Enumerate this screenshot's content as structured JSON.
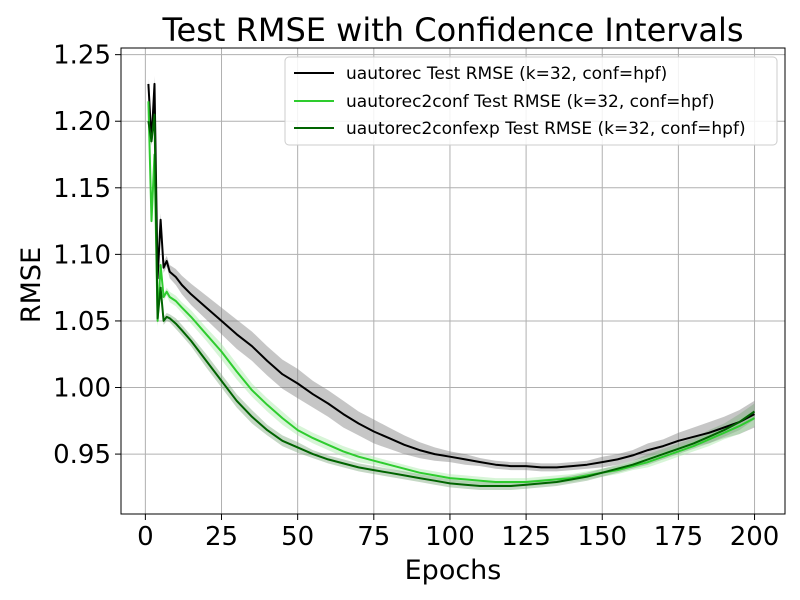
{
  "chart_data": {
    "type": "line",
    "title": "Test RMSE with Confidence Intervals",
    "xlabel": "Epochs",
    "ylabel": "RMSE",
    "xlim": [
      -8,
      210
    ],
    "ylim": [
      0.905,
      1.255
    ],
    "x_ticks": [
      0,
      25,
      50,
      75,
      100,
      125,
      150,
      175,
      200
    ],
    "y_ticks": [
      0.95,
      1.0,
      1.05,
      1.1,
      1.15,
      1.2,
      1.25
    ],
    "y_tick_labels": [
      "0.95",
      "1.00",
      "1.05",
      "1.10",
      "1.15",
      "1.20",
      "1.25"
    ],
    "grid": true,
    "legend_position": "top-right",
    "series": [
      {
        "name": "uautorec Test RMSE (k=32, conf=hpf)",
        "color": "#000000",
        "band_color": "#808080",
        "x": [
          1,
          2,
          3,
          4,
          5,
          6,
          7,
          8,
          10,
          12,
          15,
          20,
          25,
          30,
          35,
          40,
          45,
          50,
          55,
          60,
          65,
          70,
          75,
          80,
          85,
          90,
          95,
          100,
          105,
          110,
          115,
          120,
          125,
          130,
          135,
          140,
          145,
          150,
          155,
          160,
          165,
          170,
          175,
          180,
          185,
          190,
          195,
          200
        ],
        "y": [
          1.228,
          1.185,
          1.228,
          1.082,
          1.126,
          1.09,
          1.095,
          1.087,
          1.083,
          1.077,
          1.07,
          1.06,
          1.05,
          1.04,
          1.031,
          1.02,
          1.01,
          1.003,
          0.995,
          0.988,
          0.98,
          0.973,
          0.967,
          0.962,
          0.957,
          0.953,
          0.95,
          0.948,
          0.946,
          0.944,
          0.942,
          0.941,
          0.941,
          0.94,
          0.94,
          0.941,
          0.942,
          0.944,
          0.946,
          0.949,
          0.953,
          0.956,
          0.96,
          0.963,
          0.966,
          0.97,
          0.974,
          0.98
        ],
        "band": [
          0.004,
          0.004,
          0.006,
          0.006,
          0.005,
          0.004,
          0.004,
          0.005,
          0.006,
          0.007,
          0.008,
          0.009,
          0.01,
          0.011,
          0.011,
          0.011,
          0.011,
          0.011,
          0.01,
          0.01,
          0.01,
          0.009,
          0.009,
          0.008,
          0.007,
          0.006,
          0.005,
          0.004,
          0.004,
          0.003,
          0.003,
          0.003,
          0.003,
          0.003,
          0.003,
          0.003,
          0.003,
          0.004,
          0.004,
          0.004,
          0.005,
          0.005,
          0.006,
          0.007,
          0.008,
          0.008,
          0.009,
          0.01
        ]
      },
      {
        "name": "uautorec2conf Test RMSE (k=32, conf=hpf)",
        "color": "#2ecc2e",
        "band_color": "#a6e9a6",
        "x": [
          1,
          2,
          3,
          4,
          5,
          6,
          7,
          8,
          10,
          12,
          15,
          20,
          25,
          30,
          35,
          40,
          45,
          50,
          55,
          60,
          65,
          70,
          75,
          80,
          85,
          90,
          95,
          100,
          105,
          110,
          115,
          120,
          125,
          130,
          135,
          140,
          145,
          150,
          155,
          160,
          165,
          170,
          175,
          180,
          185,
          190,
          195,
          200
        ],
        "y": [
          1.215,
          1.125,
          1.175,
          1.05,
          1.092,
          1.068,
          1.072,
          1.068,
          1.065,
          1.06,
          1.053,
          1.04,
          1.027,
          1.012,
          0.998,
          0.987,
          0.977,
          0.968,
          0.962,
          0.957,
          0.952,
          0.948,
          0.945,
          0.942,
          0.939,
          0.936,
          0.934,
          0.932,
          0.931,
          0.93,
          0.929,
          0.929,
          0.929,
          0.93,
          0.931,
          0.932,
          0.934,
          0.936,
          0.938,
          0.941,
          0.944,
          0.948,
          0.952,
          0.956,
          0.961,
          0.966,
          0.971,
          0.977
        ],
        "band": [
          0.003,
          0.003,
          0.005,
          0.005,
          0.004,
          0.003,
          0.003,
          0.004,
          0.004,
          0.004,
          0.005,
          0.005,
          0.006,
          0.006,
          0.005,
          0.005,
          0.005,
          0.004,
          0.004,
          0.004,
          0.004,
          0.004,
          0.003,
          0.003,
          0.003,
          0.003,
          0.003,
          0.003,
          0.003,
          0.003,
          0.003,
          0.003,
          0.003,
          0.003,
          0.003,
          0.003,
          0.003,
          0.003,
          0.003,
          0.003,
          0.004,
          0.004,
          0.004,
          0.004,
          0.005,
          0.005,
          0.006,
          0.006
        ]
      },
      {
        "name": "uautorec2confexp Test RMSE (k=32, conf=hpf)",
        "color": "#006400",
        "band_color": "#7fa87f",
        "x": [
          1,
          2,
          3,
          4,
          5,
          6,
          7,
          8,
          10,
          12,
          15,
          20,
          25,
          30,
          35,
          40,
          45,
          50,
          55,
          60,
          65,
          70,
          75,
          80,
          85,
          90,
          95,
          100,
          105,
          110,
          115,
          120,
          125,
          130,
          135,
          140,
          145,
          150,
          155,
          160,
          165,
          170,
          175,
          180,
          185,
          190,
          195,
          200
        ],
        "y": [
          1.2,
          1.185,
          1.205,
          1.052,
          1.075,
          1.05,
          1.053,
          1.052,
          1.048,
          1.043,
          1.035,
          1.02,
          1.005,
          0.99,
          0.978,
          0.968,
          0.96,
          0.955,
          0.95,
          0.946,
          0.943,
          0.94,
          0.938,
          0.936,
          0.934,
          0.932,
          0.93,
          0.928,
          0.927,
          0.926,
          0.926,
          0.926,
          0.927,
          0.928,
          0.929,
          0.931,
          0.933,
          0.936,
          0.939,
          0.942,
          0.946,
          0.95,
          0.954,
          0.958,
          0.963,
          0.968,
          0.974,
          0.982
        ],
        "band": [
          0.003,
          0.003,
          0.005,
          0.005,
          0.004,
          0.003,
          0.003,
          0.003,
          0.004,
          0.004,
          0.004,
          0.005,
          0.005,
          0.005,
          0.005,
          0.004,
          0.004,
          0.004,
          0.003,
          0.003,
          0.003,
          0.003,
          0.003,
          0.003,
          0.003,
          0.003,
          0.003,
          0.003,
          0.003,
          0.003,
          0.003,
          0.003,
          0.003,
          0.003,
          0.003,
          0.003,
          0.003,
          0.003,
          0.003,
          0.003,
          0.004,
          0.004,
          0.004,
          0.004,
          0.005,
          0.005,
          0.006,
          0.006
        ]
      }
    ]
  }
}
